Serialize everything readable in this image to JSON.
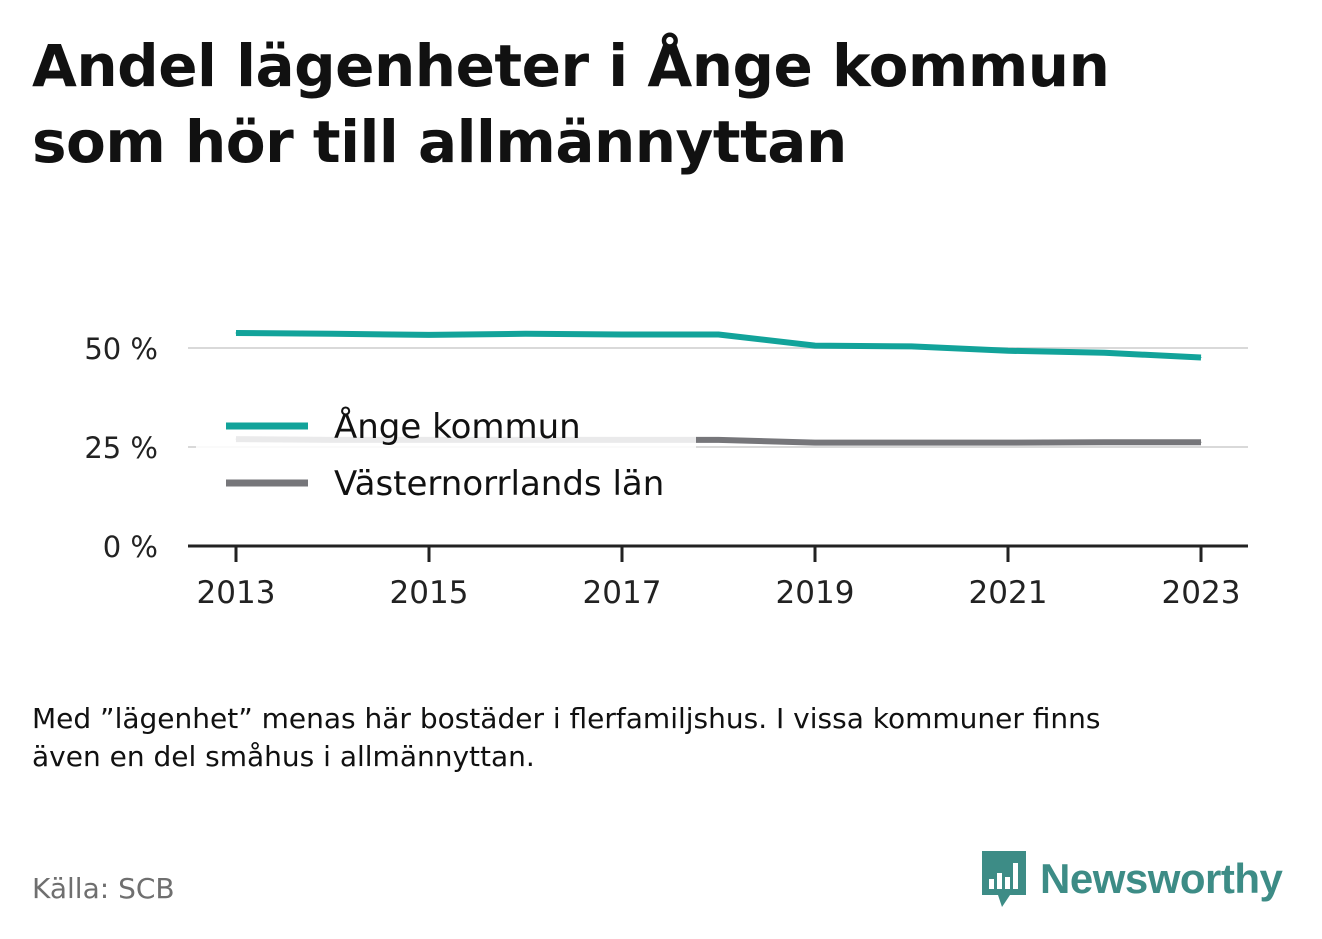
{
  "title_lines": [
    "Andel lägenheter i Ånge kommun",
    "som hör till allmännyttan"
  ],
  "note_lines": [
    "Med ”lägenhet” menas här bostäder i flerfamiljshus. I vissa kommuner finns",
    "även en del småhus i allmännyttan."
  ],
  "source": "Källa: SCB",
  "brand": {
    "name": "Newsworthy",
    "color": "#3d8c86",
    "icon": "newsworthy-logo-icon"
  },
  "chart_data": {
    "type": "line",
    "x": [
      2013,
      2014,
      2015,
      2016,
      2017,
      2018,
      2019,
      2020,
      2021,
      2022,
      2023
    ],
    "x_tick_labels": [
      "2013",
      "2015",
      "2017",
      "2019",
      "2021",
      "2023"
    ],
    "y_tick_labels": [
      "0 %",
      "25 %",
      "50 %"
    ],
    "y_ticks": [
      0,
      25,
      50
    ],
    "ylim": [
      0,
      100
    ],
    "grid": true,
    "legend_position": "inside-left",
    "series": [
      {
        "name": "Ånge kommun",
        "color": "#12a39a",
        "values": [
          53.8,
          53.6,
          53.3,
          53.6,
          53.4,
          53.4,
          50.6,
          50.4,
          49.3,
          48.8,
          47.6
        ]
      },
      {
        "name": "Västernorrlands län",
        "color": "#76767a",
        "values": [
          27.0,
          26.8,
          26.8,
          26.8,
          26.8,
          26.8,
          26.1,
          26.1,
          26.1,
          26.2,
          26.2
        ]
      }
    ]
  }
}
